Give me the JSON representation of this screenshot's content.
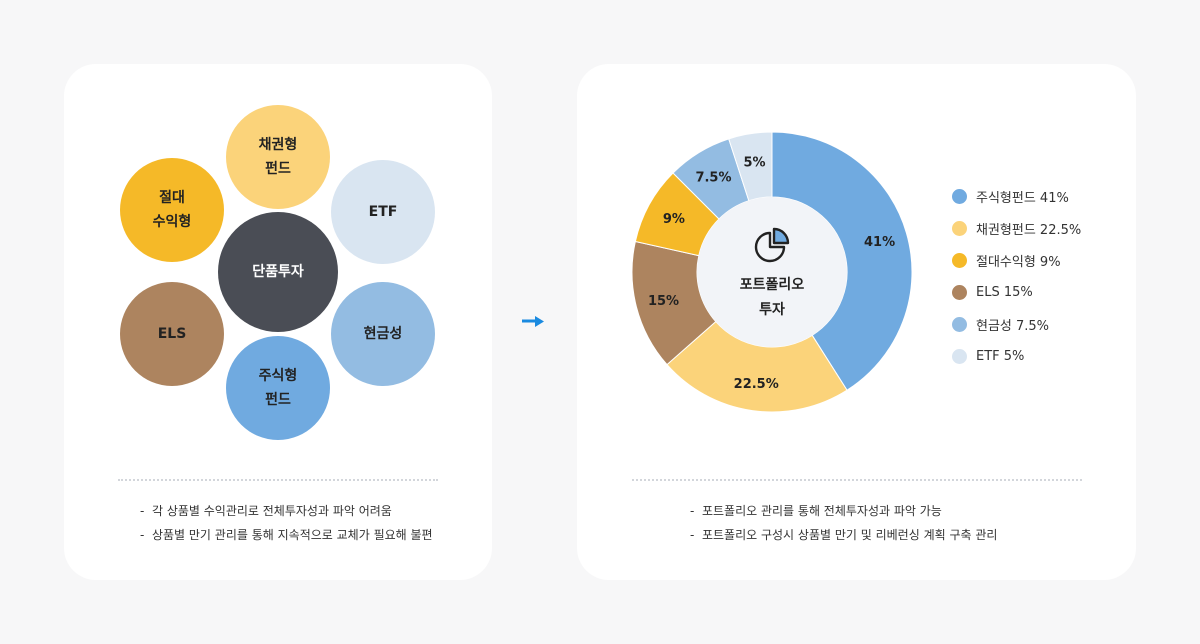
{
  "left_panel": {
    "center_node": "단품투자",
    "nodes": [
      {
        "key": "bond",
        "label": "채권형\n펀드",
        "color": "#fbd37a"
      },
      {
        "key": "etf",
        "label": "ETF",
        "color": "#d9e5f1"
      },
      {
        "key": "cash",
        "label": "현금성",
        "color": "#93bce2"
      },
      {
        "key": "stock",
        "label": "주식형\n펀드",
        "color": "#70aae0"
      },
      {
        "key": "els",
        "label": "ELS",
        "color": "#ad845f"
      },
      {
        "key": "absolute",
        "label": "절대\n수익형",
        "color": "#f5b928"
      }
    ],
    "center_color": "#4a4d55",
    "notes": [
      "-  각 상품별 수익관리로 전체투자성과 파악 어려움",
      "-  상품별 만기 관리를 통해 지속적으로 교체가 필요해 불편"
    ]
  },
  "right_panel": {
    "center_label_line1": "포트폴리오",
    "center_label_line2": "투자",
    "legend": [
      {
        "label": "주식형펀드 41%",
        "color": "#70aae0"
      },
      {
        "label": "채권형펀드 22.5%",
        "color": "#fbd37a"
      },
      {
        "label": "절대수익형 9%",
        "color": "#f5b928"
      },
      {
        "label": "ELS 15%",
        "color": "#ad845f"
      },
      {
        "label": "현금성 7.5%",
        "color": "#93bce2"
      },
      {
        "label": "ETF 5%",
        "color": "#d9e5f1"
      }
    ],
    "notes": [
      "-  포트폴리오 관리를 통해 전체투자성과 파악 가능",
      "-  포트폴리오 구성시 상품별 만기 및 리베런싱 계획 구축 관리"
    ]
  },
  "chart_data": {
    "type": "pie",
    "variant": "donut",
    "slices": [
      {
        "label": "41%",
        "value": 41,
        "color": "#70aae0"
      },
      {
        "label": "22.5%",
        "value": 22.5,
        "color": "#fbd37a"
      },
      {
        "label": "15%",
        "value": 15,
        "color": "#ad845f"
      },
      {
        "label": "9%",
        "value": 9,
        "color": "#f5b928"
      },
      {
        "label": "7.5%",
        "value": 7.5,
        "color": "#93bce2"
      },
      {
        "label": "5%",
        "value": 5,
        "color": "#d9e5f1"
      }
    ],
    "start": "top",
    "direction": "clockwise",
    "legend_position": "right"
  },
  "icons": {
    "arrow": "arrow-right-icon",
    "pie": "pie-chart-icon"
  },
  "arrow_color": "#1a8ae0"
}
